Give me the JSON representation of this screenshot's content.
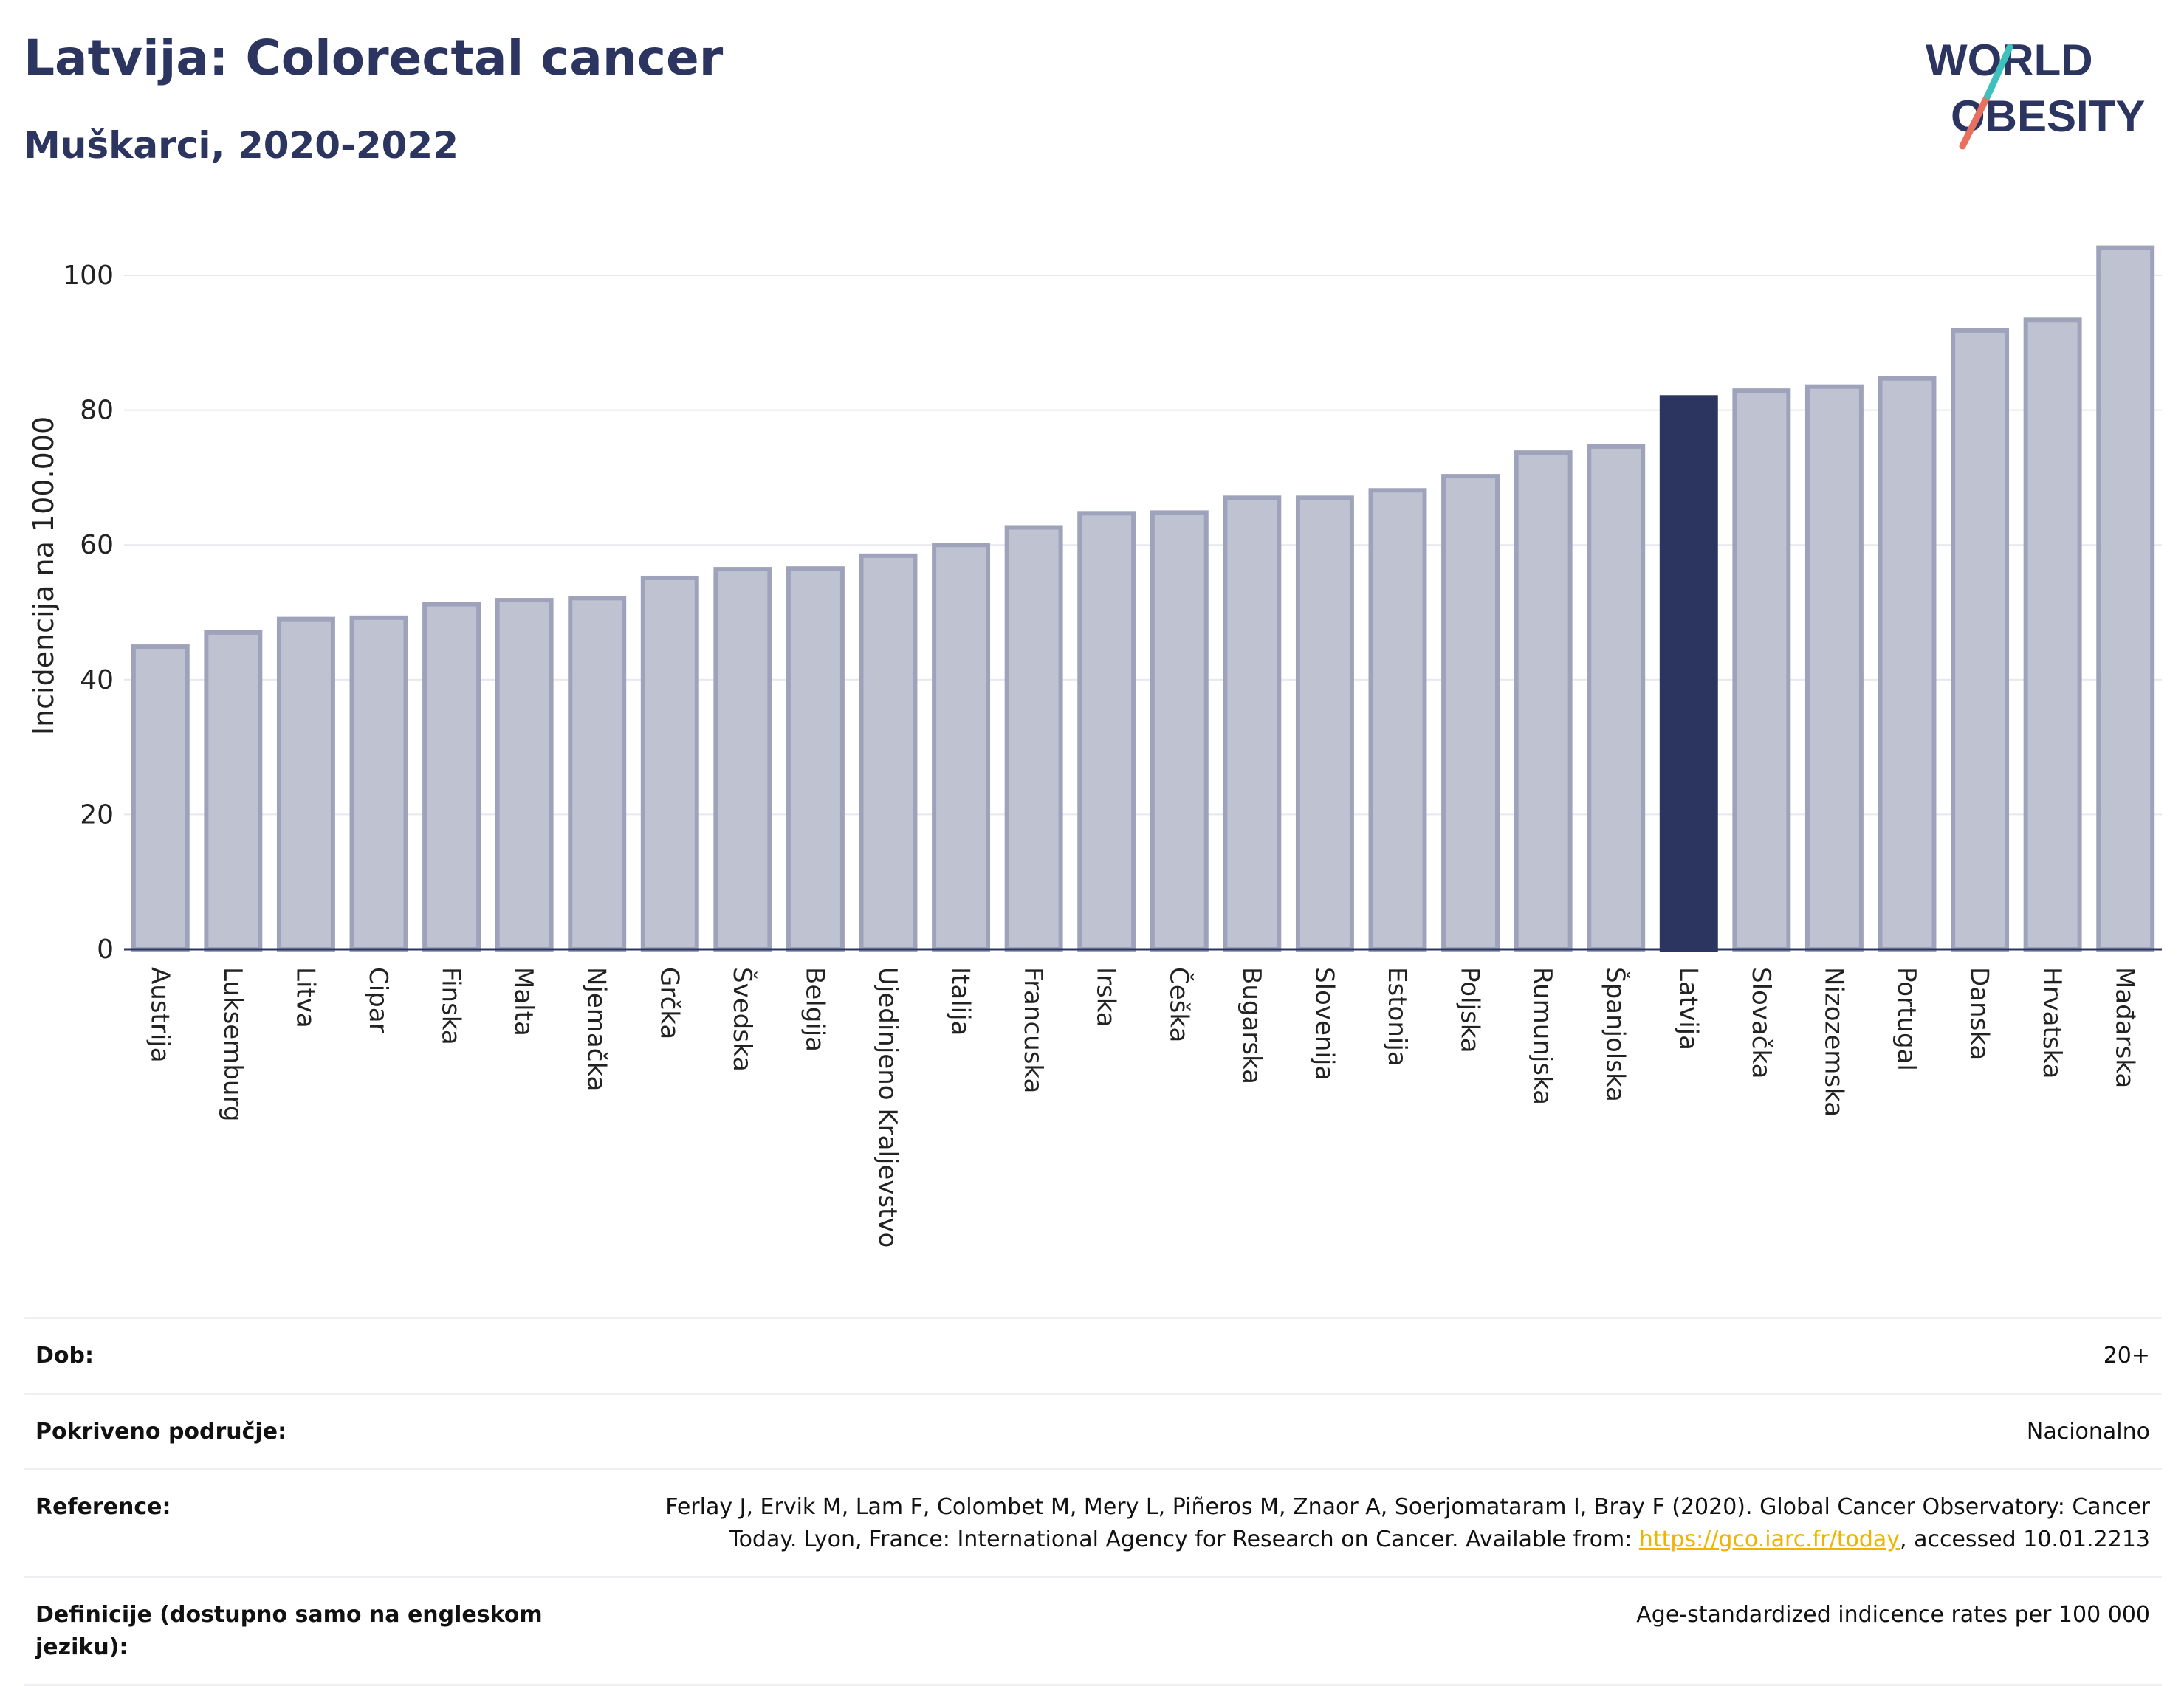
{
  "header": {
    "title": "Latvija: Colorectal cancer",
    "subtitle": "Muškarci, 2020-2022"
  },
  "logo": {
    "line1": "WORLD",
    "line2": "OBESITY"
  },
  "chart_data": {
    "type": "bar",
    "title": "Latvija: Colorectal cancer",
    "subtitle": "Muškarci, 2020-2022",
    "ylabel": "Incidencija na 100.000",
    "xlabel": "",
    "ylim": [
      0,
      108
    ],
    "yticks": [
      0,
      20,
      40,
      60,
      80,
      100
    ],
    "grid": true,
    "highlight": "Latvija",
    "colors": {
      "bar": "#bfc2d0",
      "bar_border": "#9ea3bb",
      "highlight": "#2b3560",
      "grid": "#e6e8ee"
    },
    "categories": [
      "Austrija",
      "Luksemburg",
      "Litva",
      "Cipar",
      "Finska",
      "Malta",
      "Njemačka",
      "Grčka",
      "Švedska",
      "Belgija",
      "Ujedinjeno Kraljevstvo",
      "Italija",
      "Francuska",
      "Irska",
      "Češka",
      "Bugarska",
      "Slovenija",
      "Estonija",
      "Poljska",
      "Rumunjska",
      "Španjolska",
      "Latvija",
      "Slovačka",
      "Nizozemska",
      "Portugal",
      "Danska",
      "Hrvatska",
      "Mađarska"
    ],
    "values": [
      44.9,
      47.0,
      49.0,
      49.2,
      51.2,
      51.8,
      52.1,
      55.1,
      56.4,
      56.5,
      58.4,
      60.0,
      62.6,
      64.7,
      64.8,
      67.0,
      67.0,
      68.1,
      70.2,
      73.7,
      74.6,
      81.9,
      82.9,
      83.5,
      84.7,
      91.8,
      93.4,
      104.1
    ]
  },
  "info": {
    "rows": [
      {
        "label": "Dob:",
        "value": "20+"
      },
      {
        "label": "Pokriveno područje:",
        "value": "Nacionalno"
      },
      {
        "label": "Reference:",
        "value_pre": "Ferlay J, Ervik M, Lam F, Colombet M, Mery L, Piñeros M, Znaor A, Soerjomataram I, Bray F (2020). Global Cancer Observatory: Cancer Today. Lyon, France: International Agency for Research on Cancer. Available from: ",
        "link": "https://gco.iarc.fr/today",
        "value_post": ", accessed 10.01.2213"
      },
      {
        "label": "Definicije (dostupno samo na engleskom jeziku):",
        "value": "Age-standardized indicence rates per 100 000"
      }
    ]
  }
}
